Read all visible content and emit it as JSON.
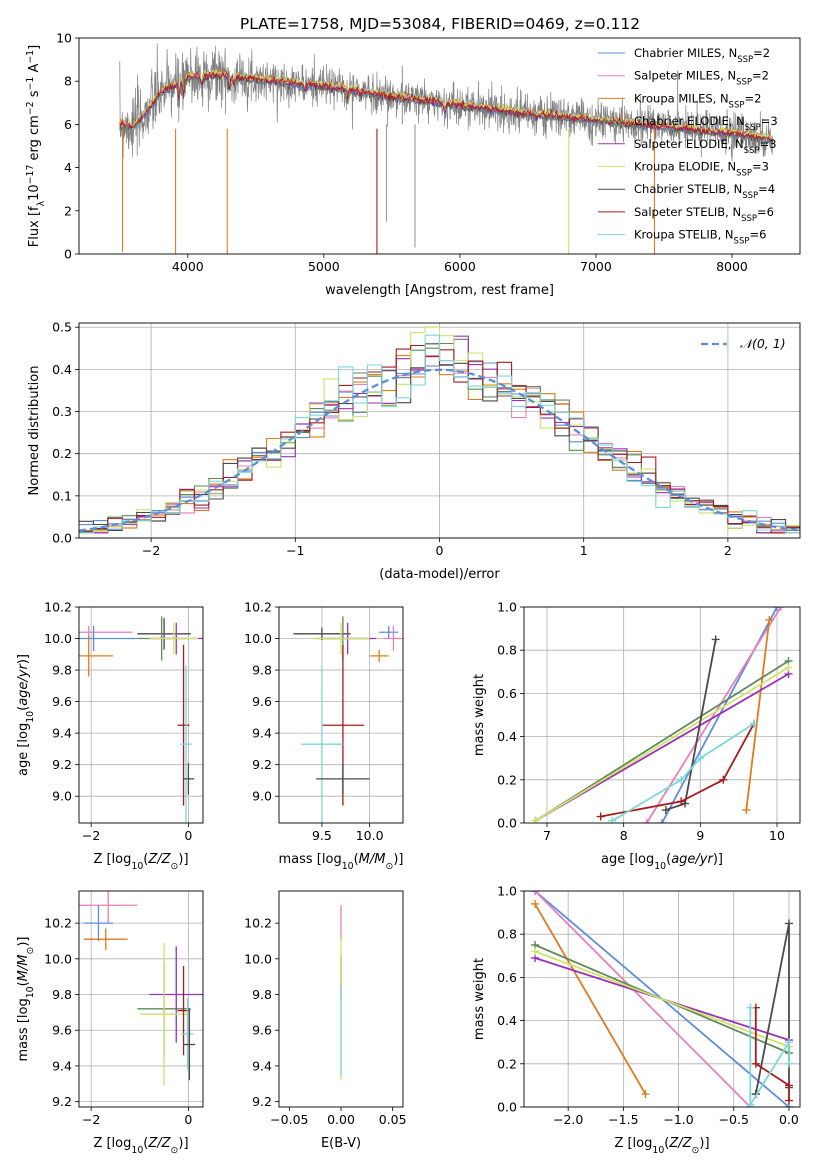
{
  "figure": {
    "title": "PLATE=1758, MJD=53084, FIBERID=0469, z=0.112"
  },
  "legend_models": [
    {
      "label": "Chabrier MILES, N",
      "sub": "SSP",
      "suffix": "=2",
      "color": "#5b8fd9"
    },
    {
      "label": "Salpeter MILES, N",
      "sub": "SSP",
      "suffix": "=2",
      "color": "#e97fb9"
    },
    {
      "label": "Kroupa MILES, N",
      "sub": "SSP",
      "suffix": "=2",
      "color": "#e07b1e"
    },
    {
      "label": "Chabrier ELODIE, N",
      "sub": "SSP",
      "suffix": "=3",
      "color": "#5f8a5a"
    },
    {
      "label": "Salpeter ELODIE, N",
      "sub": "SSP",
      "suffix": "=3",
      "color": "#9b30b8"
    },
    {
      "label": "Kroupa ELODIE, N",
      "sub": "SSP",
      "suffix": "=3",
      "color": "#cfe36a"
    },
    {
      "label": "Chabrier STELIB, N",
      "sub": "SSP",
      "suffix": "=4",
      "color": "#4a4a4a"
    },
    {
      "label": "Salpeter STELIB, N",
      "sub": "SSP",
      "suffix": "=6",
      "color": "#a61c1c"
    },
    {
      "label": "Kroupa STELIB, N",
      "sub": "SSP",
      "suffix": "=6",
      "color": "#7fd6d8"
    }
  ],
  "chart_data": [
    {
      "id": "spectrum",
      "type": "line",
      "xlabel": "wavelength [Angstrom, rest frame]",
      "ylabel": "Flux [f",
      "ylabel_parts": [
        "Flux [f",
        "λ",
        "10",
        "−17",
        " erg cm",
        "−2",
        " s",
        "−1",
        " A",
        "−1",
        "]"
      ],
      "xlim": [
        3200,
        8500
      ],
      "ylim": [
        0,
        10
      ],
      "xticks": [
        "4000",
        "5000",
        "6000",
        "7000",
        "8000"
      ],
      "yticks": [
        "0",
        "2",
        "4",
        "6",
        "8",
        "10"
      ],
      "grid": false,
      "legend_position": "top-right",
      "continuum_shape": {
        "x": [
          3500,
          3600,
          3700,
          3800,
          3900,
          4000,
          4200,
          4500,
          4800,
          5000,
          5500,
          6000,
          6500,
          7000,
          7500,
          8000,
          8300
        ],
        "y": [
          6.0,
          5.9,
          6.6,
          7.5,
          7.8,
          8.2,
          8.3,
          8.1,
          7.9,
          7.8,
          7.3,
          6.9,
          6.5,
          6.2,
          5.9,
          5.6,
          5.3
        ]
      }
    },
    {
      "id": "residuals",
      "type": "histogram",
      "xlabel": "(data-model)/error",
      "ylabel": "Normed distribution",
      "xlim": [
        -2.5,
        2.5
      ],
      "ylim": [
        0,
        0.51
      ],
      "xticks": [
        "−2",
        "−1",
        "0",
        "1",
        "2"
      ],
      "yticks": [
        "0.0",
        "0.1",
        "0.2",
        "0.3",
        "0.4",
        "0.5"
      ],
      "grid": true,
      "bin_width": 0.1,
      "gaussian_label": "𝒩(0, 1)",
      "gaussian_color": "#5b8fd9",
      "legend_position": "top-right",
      "peak_values": [
        0.39,
        0.4,
        0.38,
        0.46,
        0.41,
        0.49,
        0.42,
        0.44,
        0.37
      ]
    },
    {
      "id": "age_vs_Z",
      "type": "errorbar",
      "xlabel": "Z [log",
      "xlabel_tail": "(Z/Z",
      "ylabel": "age  [log",
      "xlim": [
        -2.25,
        0.3
      ],
      "ylim": [
        8.83,
        10.2
      ],
      "xticks": [
        "−2",
        "0"
      ],
      "yticks": [
        "9.0",
        "9.2",
        "9.4",
        "9.6",
        "9.8",
        "10.0",
        "10.2"
      ],
      "grid": true,
      "points": [
        {
          "x": -2.05,
          "xe": 0.9,
          "y": 10.04,
          "ye": 0.04,
          "color": "#e97fb9"
        },
        {
          "x": -1.95,
          "xe": 0.9,
          "y": 10.0,
          "ye": 0.08,
          "color": "#5b8fd9"
        },
        {
          "x": -2.05,
          "xe": 0.5,
          "y": 9.89,
          "ye": 0.13,
          "color": "#e07b1e"
        },
        {
          "x": -0.5,
          "xe": 0.55,
          "y": 10.03,
          "ye": 0.1,
          "color": "#4a4a4a"
        },
        {
          "x": -0.55,
          "xe": 0.5,
          "y": 10.0,
          "ye": 0.14,
          "color": "#5f8a5a"
        },
        {
          "x": -0.25,
          "xe": 0.55,
          "y": 10.0,
          "ye": 0.1,
          "color": "#9b30b8"
        },
        {
          "x": -0.3,
          "xe": 0.5,
          "y": 10.0,
          "ye": 0.1,
          "color": "#cfe36a"
        },
        {
          "x": -0.1,
          "xe": 0.12,
          "y": 9.45,
          "ye": 0.51,
          "color": "#a61c1c"
        },
        {
          "x": -0.05,
          "xe": 0.12,
          "y": 9.33,
          "ye": 0.5,
          "color": "#7fd6d8"
        },
        {
          "x": 0.0,
          "xe": 0.12,
          "y": 9.11,
          "ye": 0.1,
          "color": "#4a4a4a"
        }
      ]
    },
    {
      "id": "age_vs_mass",
      "type": "errorbar",
      "xlabel": "mass [log",
      "xlim": [
        9.05,
        10.35
      ],
      "ylim": [
        8.83,
        10.2
      ],
      "xticks": [
        "9.5",
        "10.0"
      ],
      "yticks": [
        "9.0",
        "9.2",
        "9.4",
        "9.6",
        "9.8",
        "10.0",
        "10.2"
      ],
      "grid": true,
      "points": [
        {
          "x": 9.5,
          "xe": 0.3,
          "y": 10.03,
          "ye": 0.04,
          "color": "#4a4a4a"
        },
        {
          "x": 9.72,
          "xe": 0.3,
          "y": 10.0,
          "ye": 0.14,
          "color": "#5f8a5a"
        },
        {
          "x": 9.77,
          "xe": 0.3,
          "y": 10.0,
          "ye": 0.1,
          "color": "#9b30b8"
        },
        {
          "x": 9.7,
          "xe": 0.3,
          "y": 10.0,
          "ye": 0.1,
          "color": "#cfe36a"
        },
        {
          "x": 10.2,
          "xe": 0.1,
          "y": 10.04,
          "ye": 0.04,
          "color": "#5b8fd9"
        },
        {
          "x": 10.25,
          "xe": 0.1,
          "y": 10.0,
          "ye": 0.08,
          "color": "#e97fb9"
        },
        {
          "x": 10.1,
          "xe": 0.1,
          "y": 9.89,
          "ye": 0.04,
          "color": "#e07b1e"
        },
        {
          "x": 9.72,
          "xe": 0.22,
          "y": 9.45,
          "ye": 0.51,
          "color": "#a61c1c"
        },
        {
          "x": 9.5,
          "xe": 0.22,
          "y": 9.33,
          "ye": 0.5,
          "color": "#7fd6d8"
        },
        {
          "x": 9.72,
          "xe": 0.28,
          "y": 9.11,
          "ye": 0.1,
          "color": "#4a4a4a"
        }
      ]
    },
    {
      "id": "massweight_vs_age",
      "type": "line",
      "xlabel": "age  [log",
      "ylabel": "mass weight",
      "xlim": [
        6.7,
        10.3
      ],
      "ylim": [
        0,
        1.0
      ],
      "xticks": [
        "7",
        "8",
        "9",
        "10"
      ],
      "yticks": [
        "0.0",
        "0.2",
        "0.4",
        "0.6",
        "0.8",
        "1.0"
      ],
      "grid": true,
      "series": [
        {
          "color": "#5b8fd9",
          "x": [
            8.5,
            10.0
          ],
          "y": [
            0.0,
            1.0
          ]
        },
        {
          "color": "#e97fb9",
          "x": [
            8.3,
            10.05
          ],
          "y": [
            0.0,
            1.0
          ]
        },
        {
          "color": "#e07b1e",
          "x": [
            9.6,
            9.9
          ],
          "y": [
            0.06,
            0.94
          ]
        },
        {
          "color": "#5f8a5a",
          "x": [
            6.85,
            10.15
          ],
          "y": [
            0.01,
            0.75
          ]
        },
        {
          "color": "#9b30b8",
          "x": [
            6.85,
            10.15
          ],
          "y": [
            0.01,
            0.69
          ]
        },
        {
          "color": "#cfe36a",
          "x": [
            6.85,
            10.15
          ],
          "y": [
            0.01,
            0.72
          ]
        },
        {
          "color": "#4a4a4a",
          "x": [
            8.55,
            8.8,
            9.2
          ],
          "y": [
            0.06,
            0.09,
            0.85
          ]
        },
        {
          "color": "#a61c1c",
          "x": [
            7.7,
            8.75,
            9.3,
            9.7
          ],
          "y": [
            0.03,
            0.1,
            0.2,
            0.46
          ]
        },
        {
          "color": "#7fd6d8",
          "x": [
            7.85,
            8.75,
            9.0,
            9.7
          ],
          "y": [
            0.01,
            0.2,
            0.3,
            0.46
          ]
        }
      ]
    },
    {
      "id": "mass_vs_Z",
      "type": "errorbar",
      "xlabel": "Z [log",
      "ylabel": "mass [log",
      "xlim": [
        -2.25,
        0.3
      ],
      "ylim": [
        9.17,
        10.38
      ],
      "xticks": [
        "−2",
        "0"
      ],
      "yticks": [
        "9.2",
        "9.4",
        "9.6",
        "9.8",
        "10.0",
        "10.2"
      ],
      "grid": true,
      "points": [
        {
          "x": -1.65,
          "xe": 0.6,
          "y": 10.3,
          "ye": 0.1,
          "color": "#e97fb9"
        },
        {
          "x": -1.85,
          "xe": 0.3,
          "y": 10.2,
          "ye": 0.1,
          "color": "#5b8fd9"
        },
        {
          "x": -1.7,
          "xe": 0.45,
          "y": 10.11,
          "ye": 0.06,
          "color": "#e07b1e"
        },
        {
          "x": -0.5,
          "xe": 0.55,
          "y": 9.72,
          "ye": 0.26,
          "color": "#5f8a5a"
        },
        {
          "x": -0.25,
          "xe": 0.55,
          "y": 9.8,
          "ye": 0.27,
          "color": "#9b30b8"
        },
        {
          "x": -0.5,
          "xe": 0.5,
          "y": 9.69,
          "ye": 0.4,
          "color": "#cfe36a"
        },
        {
          "x": -0.1,
          "xe": 0.12,
          "y": 9.71,
          "ye": 0.25,
          "color": "#a61c1c"
        },
        {
          "x": -0.02,
          "xe": 0.12,
          "y": 9.58,
          "ye": 0.2,
          "color": "#7fd6d8"
        },
        {
          "x": 0.02,
          "xe": 0.12,
          "y": 9.52,
          "ye": 0.2,
          "color": "#4a4a4a"
        }
      ]
    },
    {
      "id": "mass_vs_EBV",
      "type": "errorbar",
      "xlabel": "E(B-V)",
      "xlim": [
        -0.06,
        0.06
      ],
      "ylim": [
        9.17,
        10.38
      ],
      "xticks": [
        "−0.05",
        "0.00",
        "0.05"
      ],
      "yticks": [
        "9.2",
        "9.4",
        "9.6",
        "9.8",
        "10.0",
        "10.2"
      ],
      "grid": false,
      "points": [
        {
          "x": 0.0,
          "xe": 0.0,
          "y": 10.2,
          "ye": 0.1,
          "color": "#e97fb9"
        },
        {
          "x": 0.0,
          "xe": 0.0,
          "y": 9.9,
          "ye": 0.12,
          "color": "#a61c1c"
        },
        {
          "x": 0.0,
          "xe": 0.0,
          "y": 9.72,
          "ye": 0.4,
          "color": "#cfe36a"
        },
        {
          "x": 0.0,
          "xe": 0.0,
          "y": 9.6,
          "ye": 0.25,
          "color": "#7fd6d8"
        }
      ]
    },
    {
      "id": "massweight_vs_Z",
      "type": "line",
      "xlabel": "Z [log",
      "ylabel": "mass weight",
      "xlim": [
        -2.4,
        0.1
      ],
      "ylim": [
        0,
        1.0
      ],
      "xticks": [
        "−2.0",
        "−1.5",
        "−1.0",
        "−0.5",
        "0.0"
      ],
      "yticks": [
        "0.0",
        "0.2",
        "0.4",
        "0.6",
        "0.8",
        "1.0"
      ],
      "grid": true,
      "series": [
        {
          "color": "#5b8fd9",
          "x": [
            -2.3,
            0.0
          ],
          "y": [
            1.0,
            0.0
          ]
        },
        {
          "color": "#e97fb9",
          "x": [
            -2.3,
            -0.35
          ],
          "y": [
            1.0,
            0.0
          ]
        },
        {
          "color": "#e07b1e",
          "x": [
            -2.3,
            -1.3
          ],
          "y": [
            0.94,
            0.06
          ]
        },
        {
          "color": "#5f8a5a",
          "x": [
            -2.3,
            0.0
          ],
          "y": [
            0.75,
            0.25
          ]
        },
        {
          "color": "#9b30b8",
          "x": [
            -2.3,
            0.0
          ],
          "y": [
            0.69,
            0.31
          ]
        },
        {
          "color": "#cfe36a",
          "x": [
            -2.3,
            0.0
          ],
          "y": [
            0.72,
            0.28
          ]
        },
        {
          "color": "#4a4a4a",
          "x": [
            -0.3,
            -0.3,
            0.0,
            0.0
          ],
          "y": [
            0.06,
            0.06,
            0.85,
            0.09
          ]
        },
        {
          "color": "#a61c1c",
          "x": [
            -0.3,
            -0.3,
            0.0,
            0.0
          ],
          "y": [
            0.46,
            0.2,
            0.1,
            0.03
          ]
        },
        {
          "color": "#7fd6d8",
          "x": [
            -0.35,
            -0.35,
            0.0,
            0.0
          ],
          "y": [
            0.46,
            0.01,
            0.3,
            0.2
          ]
        }
      ]
    }
  ]
}
